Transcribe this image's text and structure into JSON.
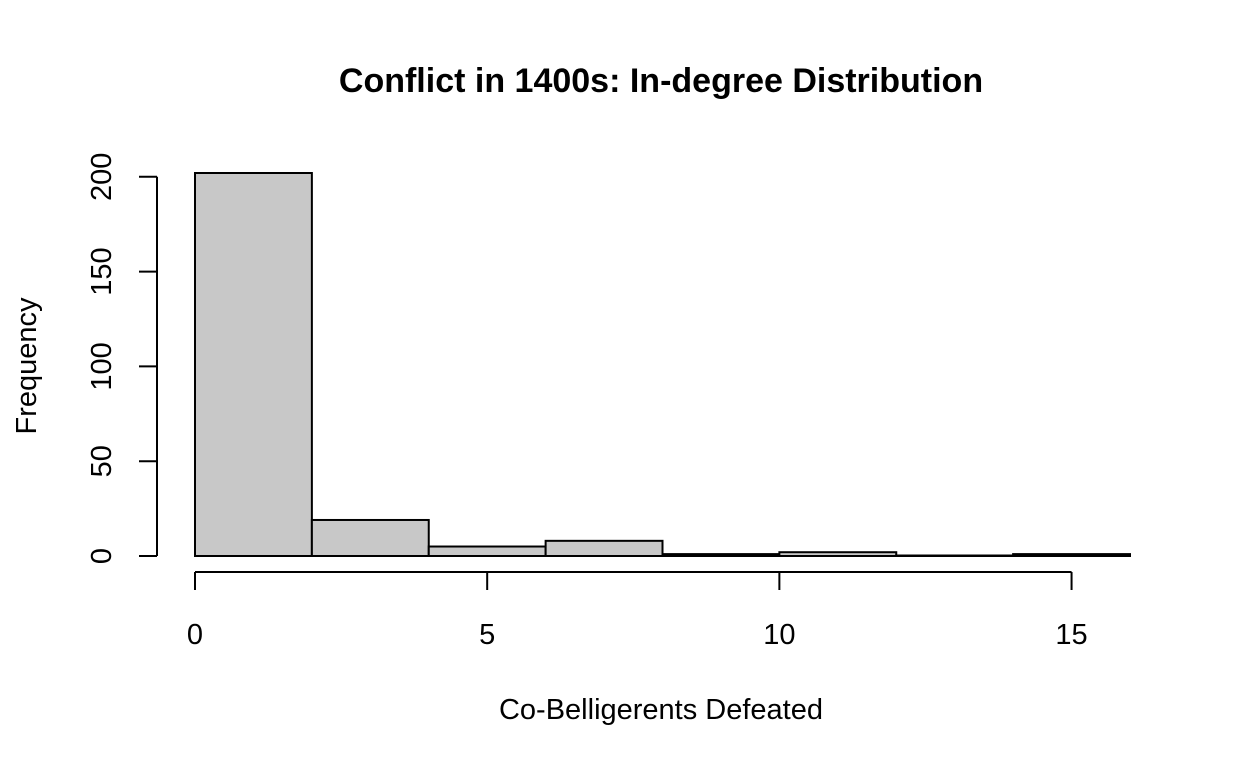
{
  "chart_data": {
    "type": "bar",
    "title": "Conflict in 1400s: In-degree Distribution",
    "xlabel": "Co-Belligerents Defeated",
    "ylabel": "Frequency",
    "bins": [
      {
        "start": 0,
        "end": 2,
        "count": 202
      },
      {
        "start": 2,
        "end": 4,
        "count": 19
      },
      {
        "start": 4,
        "end": 6,
        "count": 5
      },
      {
        "start": 6,
        "end": 8,
        "count": 8
      },
      {
        "start": 8,
        "end": 10,
        "count": 1
      },
      {
        "start": 10,
        "end": 12,
        "count": 2
      },
      {
        "start": 12,
        "end": 14,
        "count": 0
      },
      {
        "start": 14,
        "end": 16,
        "count": 1
      }
    ],
    "xlim": [
      0,
      16
    ],
    "ylim": [
      0,
      202
    ],
    "x_ticks": [
      0,
      5,
      10,
      15
    ],
    "x_tick_labels": [
      "0",
      "5",
      "10",
      "15"
    ],
    "y_ticks": [
      0,
      50,
      100,
      150,
      200
    ],
    "y_tick_labels": [
      "0",
      "50",
      "100",
      "150",
      "200"
    ],
    "bar_color": "#c8c8c8",
    "grid": false,
    "legend": "none"
  }
}
